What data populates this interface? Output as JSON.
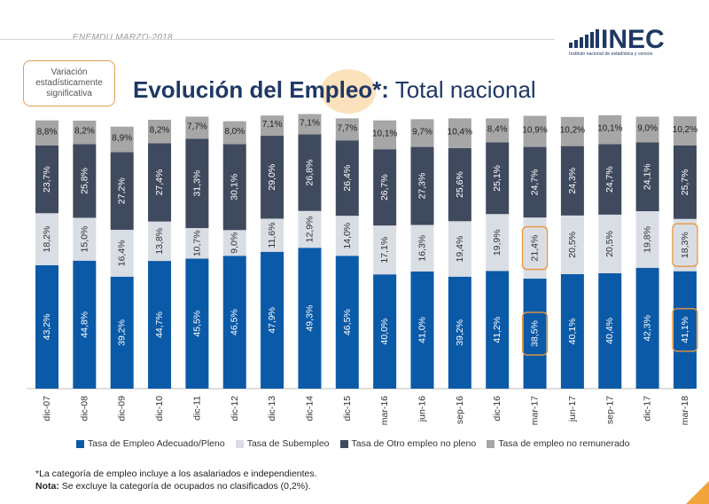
{
  "header": {
    "subtitle": "ENEMDU MARZO-2018",
    "logo_text": "INEC",
    "logo_tagline": "Instituto nacional de estadística y censos"
  },
  "significance_note": "Variación estadísticamente significativa",
  "title": {
    "bold": "Evolución del Empleo*:",
    "rest": "Total nacional"
  },
  "chart_data": {
    "type": "bar",
    "stacked": true,
    "categories": [
      "dic-07",
      "dic-08",
      "dic-09",
      "dic-10",
      "dic-11",
      "dic-12",
      "dic-13",
      "dic-14",
      "dic-15",
      "mar-16",
      "jun-16",
      "sep-16",
      "dic-16",
      "mar-17",
      "jun-17",
      "sep-17",
      "dic-17",
      "mar-18"
    ],
    "series": [
      {
        "name": "Tasa de Empleo Adecuado/Pleno",
        "color": "#0b5aa8",
        "label_color": "#ffffff",
        "values": [
          43.2,
          44.8,
          39.2,
          44.7,
          45.5,
          46.5,
          47.9,
          49.3,
          46.5,
          40.0,
          41.0,
          39.2,
          41.2,
          38.5,
          40.1,
          40.4,
          42.3,
          41.1
        ],
        "labels": [
          "43,2%",
          "44,8%",
          "39,2%",
          "44,7%",
          "45,5%",
          "46,5%",
          "47,9%",
          "49,3%",
          "46,5%",
          "40,0%",
          "41,0%",
          "39,2%",
          "41,2%",
          "38,5%",
          "40,1%",
          "40,4%",
          "42,3%",
          "41,1%"
        ]
      },
      {
        "name": "Tasa de Subempleo",
        "color": "#d9dde4",
        "label_color": "#333333",
        "values": [
          18.2,
          15.0,
          16.4,
          13.8,
          10.7,
          9.0,
          11.6,
          12.9,
          14.0,
          17.1,
          16.3,
          19.4,
          19.9,
          21.4,
          20.5,
          20.5,
          19.8,
          18.3
        ],
        "labels": [
          "18,2%",
          "15,0%",
          "16,4%",
          "13,8%",
          "10,7%",
          "9,0%",
          "11,6%",
          "12,9%",
          "14,0%",
          "17,1%",
          "16,3%",
          "19,4%",
          "19,9%",
          "21,4%",
          "20,5%",
          "20,5%",
          "19,8%",
          "18,3%"
        ]
      },
      {
        "name": "Tasa de Otro empleo no pleno",
        "color": "#3f4a5e",
        "label_color": "#ffffff",
        "values": [
          23.7,
          25.8,
          27.2,
          27.4,
          31.3,
          30.1,
          29.0,
          26.8,
          26.4,
          26.7,
          27.3,
          25.6,
          25.1,
          24.7,
          24.3,
          24.7,
          24.1,
          25.7
        ],
        "labels": [
          "23,7%",
          "25,8%",
          "27,2%",
          "27,4%",
          "31,3%",
          "30,1%",
          "29,0%",
          "26,8%",
          "26,4%",
          "26,7%",
          "27,3%",
          "25,6%",
          "25,1%",
          "24,7%",
          "24,3%",
          "24,7%",
          "24,1%",
          "25,7%"
        ]
      },
      {
        "name": "Tasa de empleo no remunerado",
        "color": "#a6a6a6",
        "label_color": "#222222",
        "values": [
          8.8,
          8.2,
          8.9,
          8.2,
          7.7,
          8.0,
          7.1,
          7.1,
          7.7,
          10.1,
          9.7,
          10.4,
          8.4,
          10.9,
          10.2,
          10.1,
          9.0,
          10.2
        ],
        "labels": [
          "8,8%",
          "8,2%",
          "8,9%",
          "8,2%",
          "7,7%",
          "8,0%",
          "7,1%",
          "7,1%",
          "7,7%",
          "10,1%",
          "9,7%",
          "10,4%",
          "8,4%",
          "10,9%",
          "10,2%",
          "10,1%",
          "9,0%",
          "10,2%"
        ]
      }
    ],
    "highlighted": [
      {
        "series": 0,
        "index": 13
      },
      {
        "series": 1,
        "index": 13
      },
      {
        "series": 0,
        "index": 17
      },
      {
        "series": 1,
        "index": 17
      }
    ],
    "ylim": [
      0,
      100
    ],
    "legend_position": "bottom",
    "grid": false
  },
  "footnotes": {
    "line1": "*La categoría de empleo incluye a los asalariados e independientes.",
    "line2_bold": "Nota:",
    "line2_rest": " Se excluye la categoría de ocupados no clasificados (0,2%)."
  }
}
